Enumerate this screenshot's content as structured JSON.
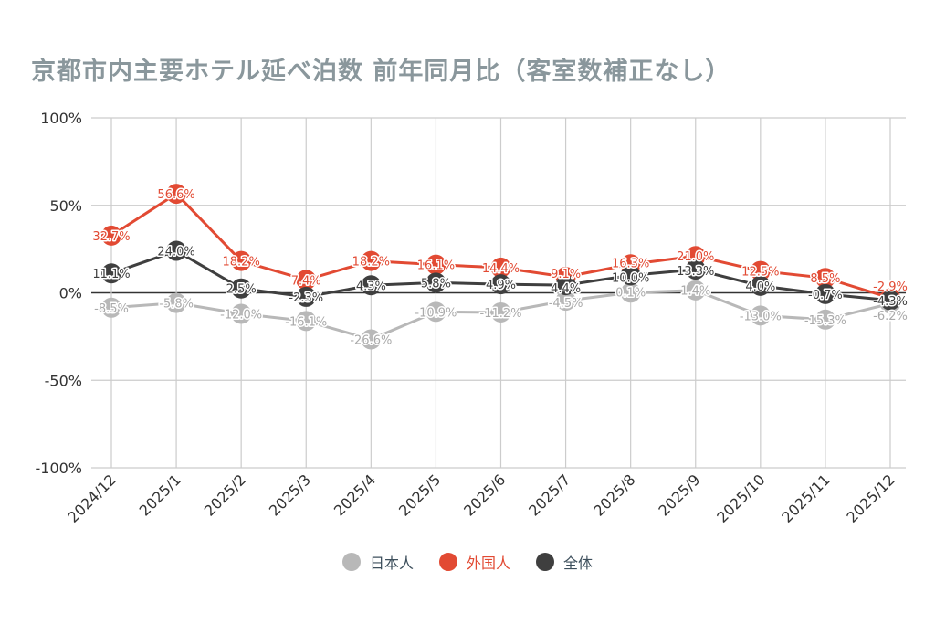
{
  "chart_data": {
    "type": "line",
    "title": "京都市内主要ホテル延べ泊数  前年同月比（客室数補正なし）",
    "categories": [
      "2024/12",
      "2025/1",
      "2025/2",
      "2025/3",
      "2025/4",
      "2025/5",
      "2025/6",
      "2025/7",
      "2025/8",
      "2025/9",
      "2025/10",
      "2025/11",
      "2025/12"
    ],
    "ylim": [
      -100,
      100
    ],
    "yticks": [
      100,
      50,
      0,
      -50,
      -100
    ],
    "ytick_labels": [
      "100%",
      "50%",
      "0%",
      "-50%",
      "-100%"
    ],
    "grid": true,
    "legend": "bottom",
    "series": [
      {
        "name": "日本人",
        "color": "#b8b8b8",
        "values": [
          -8.5,
          -5.8,
          -12.0,
          -16.1,
          -26.6,
          -10.9,
          -11.2,
          -4.5,
          0.1,
          1.4,
          -13.0,
          -15.3,
          -6.2
        ]
      },
      {
        "name": "外国人",
        "color": "#e24a33",
        "values": [
          32.7,
          56.6,
          18.2,
          7.4,
          18.2,
          16.1,
          14.4,
          9.1,
          16.3,
          21.0,
          12.5,
          8.5,
          -2.9
        ]
      },
      {
        "name": "全体",
        "color": "#3f3f3f",
        "values": [
          11.1,
          24.0,
          2.5,
          -2.3,
          4.3,
          5.8,
          4.9,
          4.4,
          10.0,
          13.3,
          4.0,
          -0.7,
          -4.3
        ]
      }
    ]
  }
}
